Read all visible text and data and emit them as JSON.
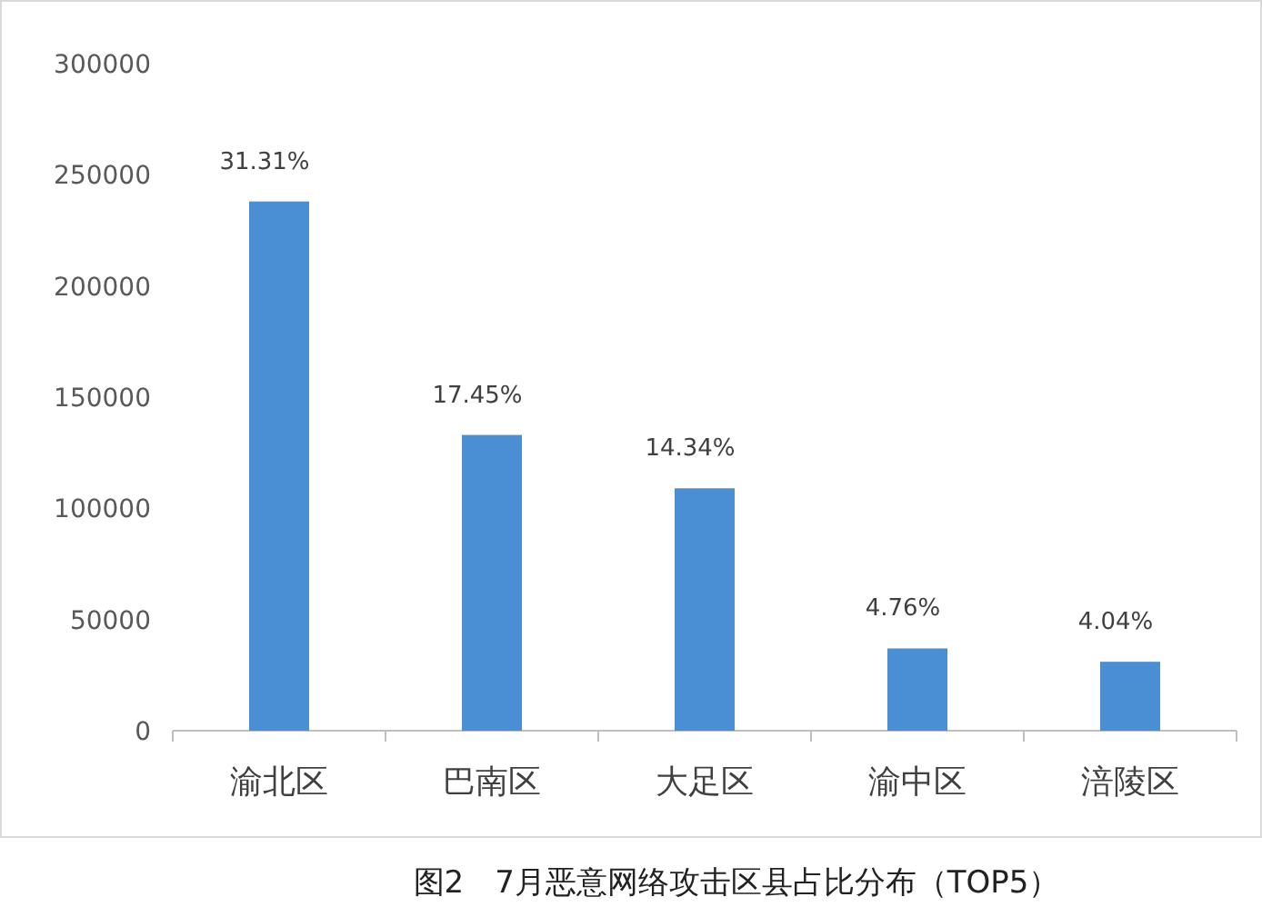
{
  "chart_data": {
    "type": "bar",
    "title": "图2　7月恶意网络攻击区县占比分布（TOP5）",
    "categories": [
      "渝北区",
      "巴南区",
      "大足区",
      "渝中区",
      "涪陵区"
    ],
    "values": [
      238000,
      133000,
      109000,
      37000,
      31000
    ],
    "annotations": [
      {
        "text": "31.31%",
        "x": "渝北区",
        "y": 238000
      },
      {
        "text": "17.45%",
        "x": "巴南区",
        "y": 133000
      },
      {
        "text": "14.34%",
        "x": "大足区",
        "y": 109000
      },
      {
        "text": "4.76%",
        "x": "渝中区",
        "y": 37000
      },
      {
        "text": "4.04%",
        "x": "涪陵区",
        "y": 31000
      }
    ],
    "color": "#4a8fd4",
    "ylim": [
      0,
      300000
    ],
    "yticks": [
      0,
      50000,
      100000,
      150000,
      200000,
      250000,
      300000
    ],
    "grid": false
  }
}
